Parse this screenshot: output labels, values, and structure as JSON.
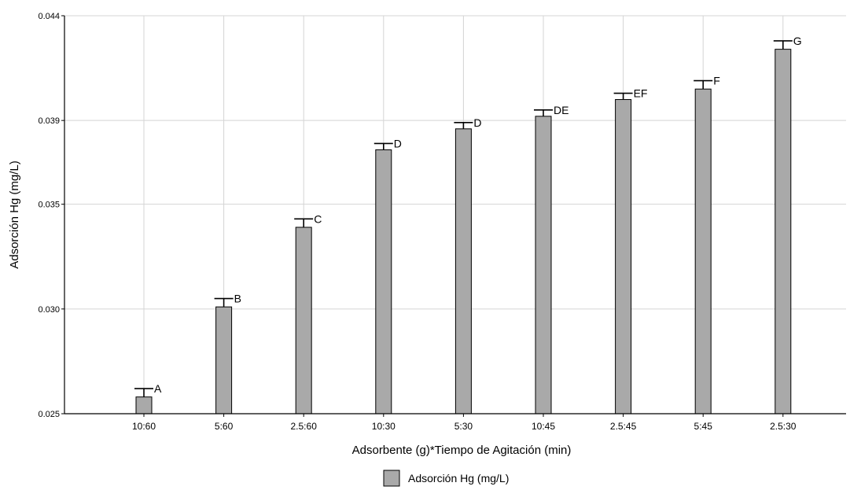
{
  "chart_data": {
    "type": "bar",
    "title": "",
    "xlabel": "Adsorbente (g)*Tiempo de Agitación (min)",
    "ylabel": "Adsorción Hg (mg/L)",
    "ylim": [
      0.025,
      0.044
    ],
    "yticks": [
      "0.025",
      "0.030",
      "0.035",
      "0.039",
      "0.044"
    ],
    "ytick_values": [
      0.025,
      0.03,
      0.035,
      0.039,
      0.044
    ],
    "categories": [
      "10:60",
      "5:60",
      "2.5:60",
      "10:30",
      "5:30",
      "10:45",
      "2.5:45",
      "5:45",
      "2.5:30"
    ],
    "series": [
      {
        "name": "Adsorción Hg (mg/L)",
        "color": "#a9a9a9",
        "values": [
          0.0258,
          0.0301,
          0.0339,
          0.0376,
          0.0386,
          0.0392,
          0.04,
          0.0405,
          0.0424
        ],
        "error_upper": [
          0.0262,
          0.0305,
          0.0343,
          0.0379,
          0.0389,
          0.0395,
          0.0403,
          0.0409,
          0.0428
        ],
        "group_letters": [
          "A",
          "B",
          "C",
          "D",
          "D",
          "DE",
          "EF",
          "F",
          "G"
        ]
      }
    ],
    "grid": true,
    "legend_position": "bottom-center"
  }
}
